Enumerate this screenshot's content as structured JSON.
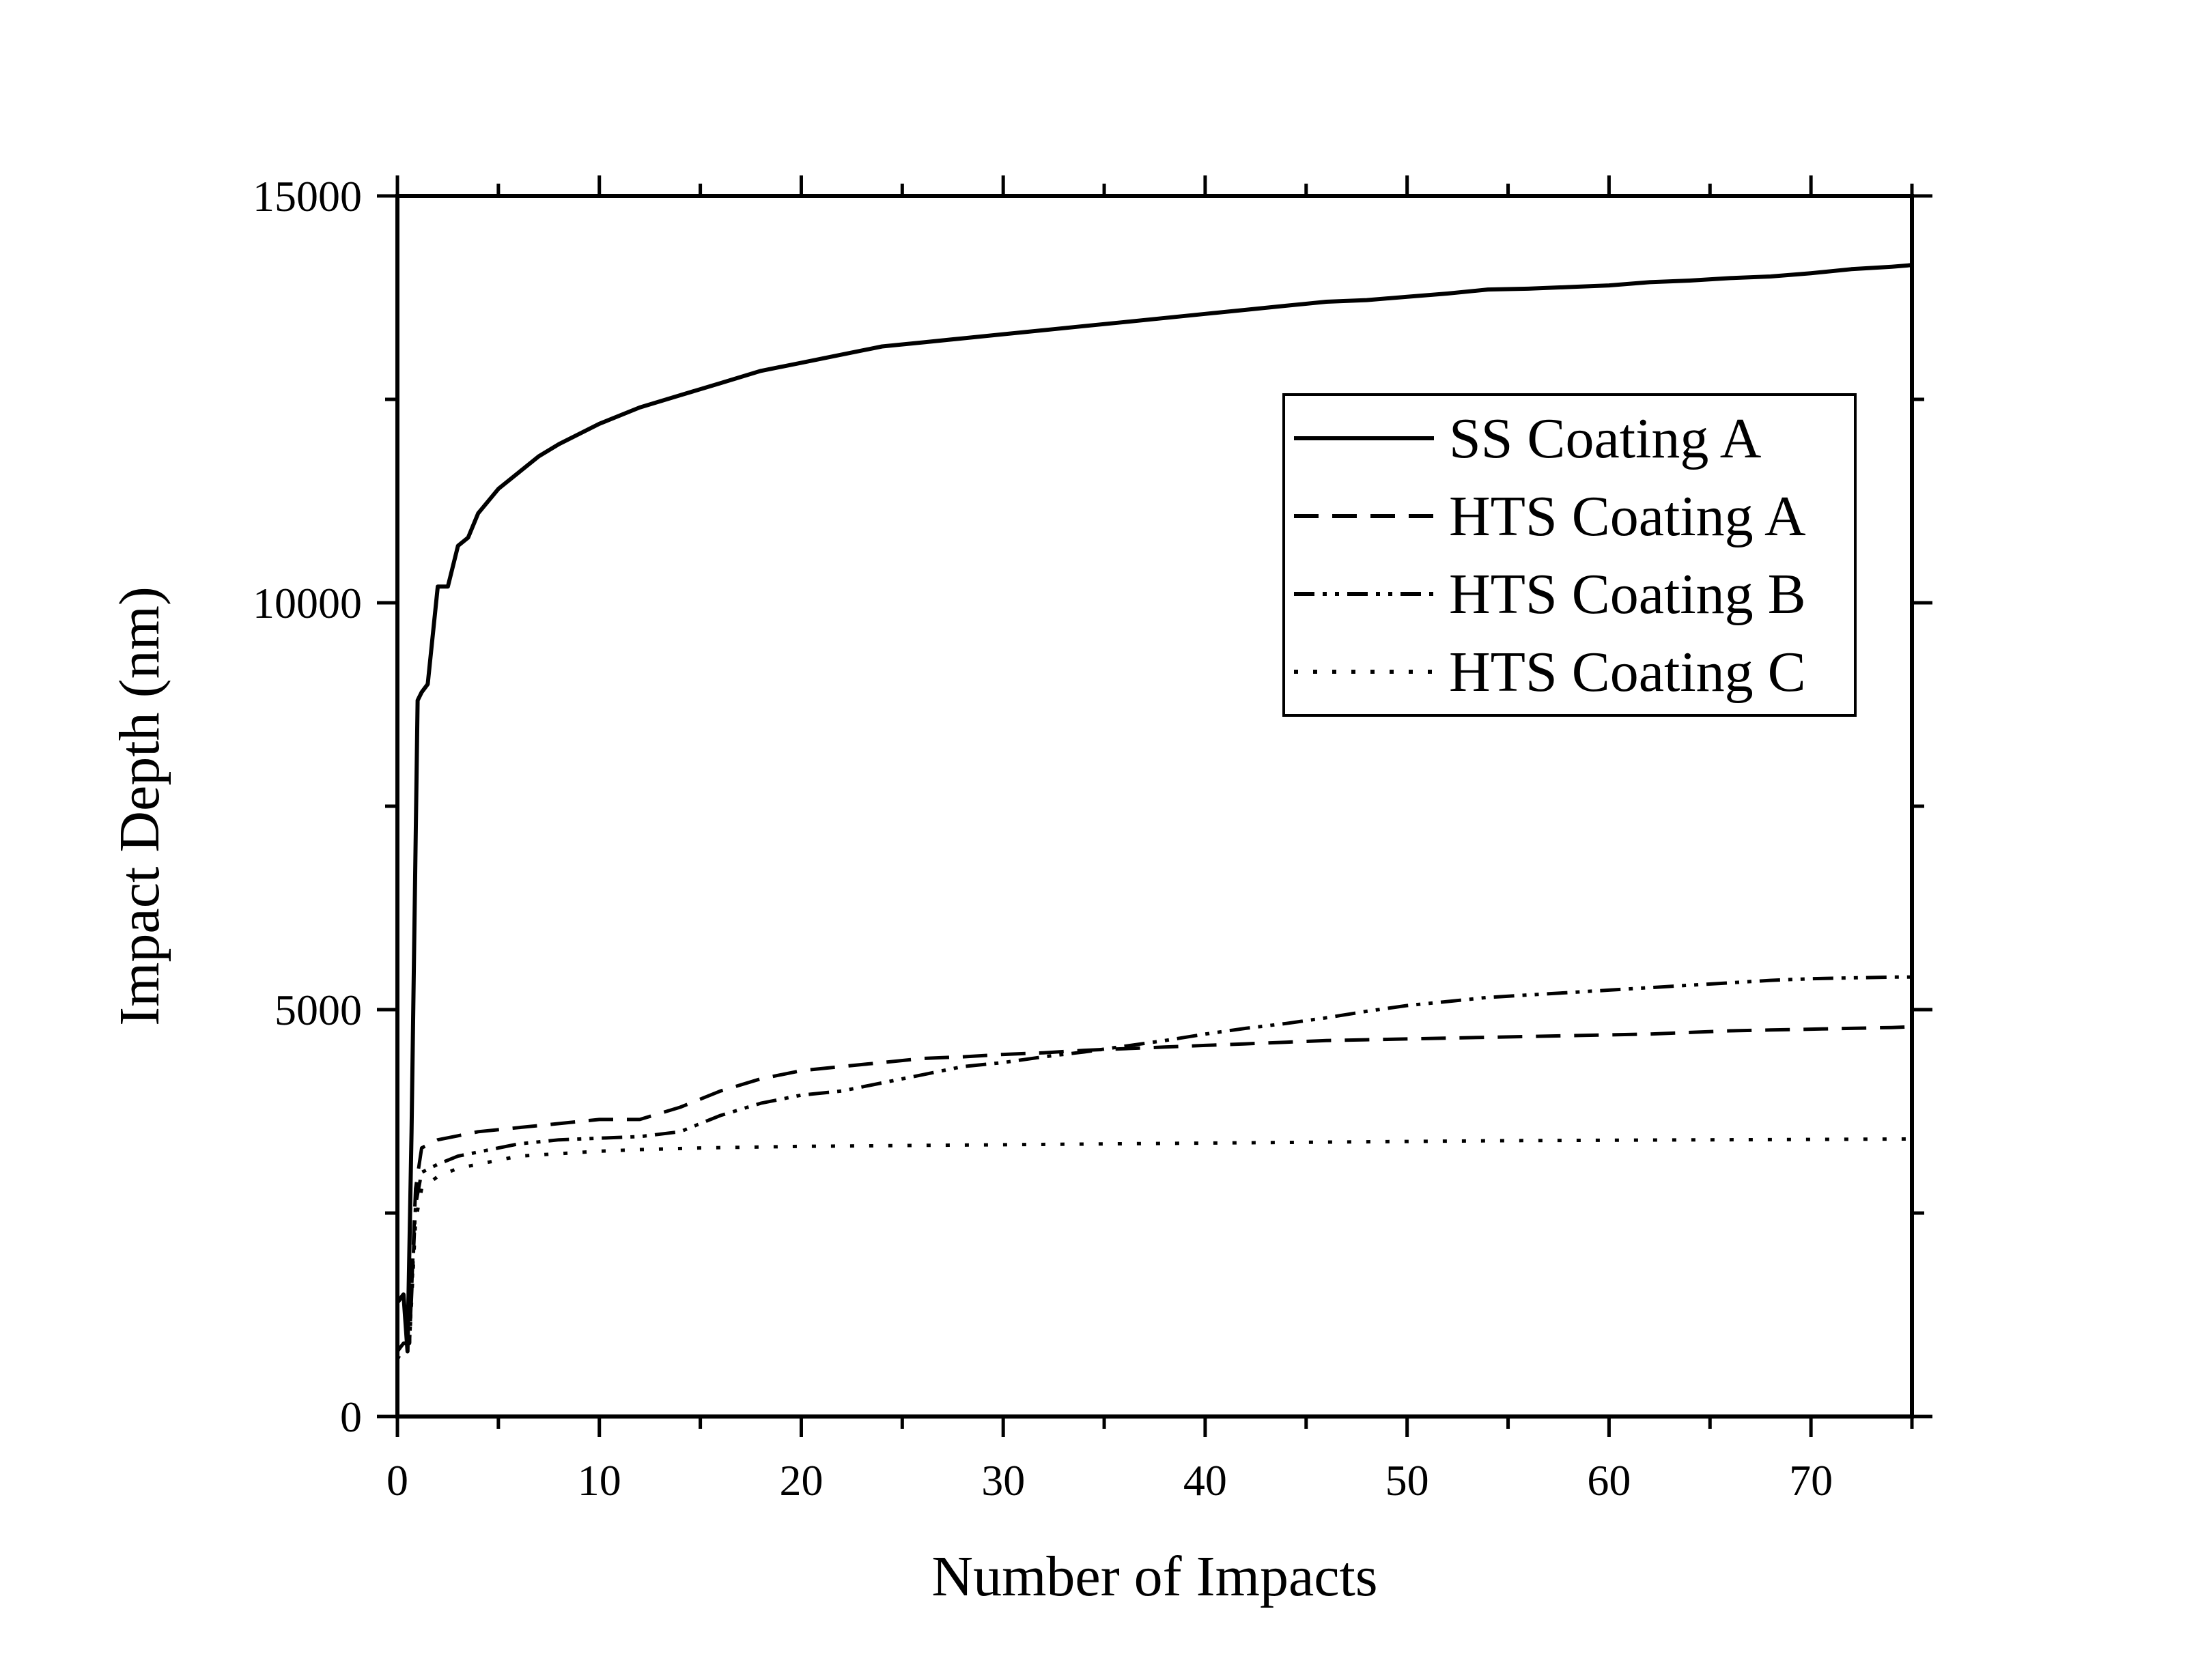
{
  "chart_data": {
    "type": "line",
    "title": "",
    "xlabel": "Number of Impacts",
    "ylabel": "Impact Depth (nm)",
    "xlim": [
      0,
      75
    ],
    "ylim": [
      0,
      15000
    ],
    "xticks": [
      0,
      10,
      20,
      30,
      40,
      50,
      60,
      70
    ],
    "yticks": [
      0,
      5000,
      10000,
      15000
    ],
    "xtick_labels": [
      "0",
      "10",
      "20",
      "30",
      "40",
      "50",
      "60",
      "70"
    ],
    "ytick_labels": [
      "0",
      "5000",
      "10000",
      "15000"
    ],
    "grid": false,
    "legend_position": "top-right",
    "series": [
      {
        "name": "SS Coating A",
        "line_style": "solid",
        "color": "#000000",
        "x": [
          0,
          0.3,
          0.5,
          0.7,
          1,
          1.2,
          1.5,
          2,
          2.5,
          3,
          3.5,
          4,
          5,
          6,
          7,
          8,
          10,
          12,
          14,
          16,
          18,
          20,
          22,
          24,
          26,
          28,
          30,
          32,
          34,
          36,
          38,
          40,
          42,
          44,
          46,
          48,
          50,
          52,
          54,
          56,
          58,
          60,
          62,
          64,
          66,
          68,
          70,
          72,
          74,
          75
        ],
        "y": [
          1400,
          1500,
          800,
          3500,
          8800,
          8900,
          9000,
          10200,
          10200,
          10700,
          10800,
          11100,
          11400,
          11600,
          11800,
          11950,
          12200,
          12400,
          12550,
          12700,
          12850,
          12950,
          13050,
          13150,
          13200,
          13250,
          13300,
          13350,
          13400,
          13450,
          13500,
          13550,
          13600,
          13650,
          13700,
          13720,
          13760,
          13800,
          13850,
          13860,
          13880,
          13900,
          13940,
          13960,
          13990,
          14010,
          14050,
          14100,
          14130,
          14150
        ]
      },
      {
        "name": "HTS Coating A",
        "line_style": "dashed",
        "color": "#000000",
        "x": [
          0,
          0.3,
          0.6,
          0.9,
          1.2,
          2,
          3,
          4,
          6,
          8,
          10,
          12,
          14,
          16,
          18,
          20,
          22,
          24,
          26,
          28,
          30,
          32,
          34,
          36,
          38,
          40,
          42,
          44,
          46,
          48,
          50,
          52,
          54,
          56,
          58,
          60,
          62,
          64,
          66,
          68,
          70,
          72,
          74,
          75
        ],
        "y": [
          800,
          900,
          900,
          2800,
          3300,
          3400,
          3450,
          3500,
          3550,
          3600,
          3650,
          3650,
          3800,
          4000,
          4150,
          4250,
          4300,
          4350,
          4400,
          4420,
          4450,
          4470,
          4500,
          4520,
          4540,
          4560,
          4580,
          4600,
          4620,
          4630,
          4640,
          4650,
          4660,
          4670,
          4680,
          4690,
          4700,
          4720,
          4740,
          4750,
          4760,
          4770,
          4780,
          4790
        ]
      },
      {
        "name": "HTS Coating B",
        "line_style": "dash-dot-dot",
        "color": "#000000",
        "x": [
          0,
          0.3,
          0.6,
          0.9,
          1.2,
          2,
          3,
          4,
          6,
          8,
          10,
          12,
          14,
          16,
          18,
          20,
          22,
          24,
          26,
          28,
          30,
          32,
          34,
          36,
          38,
          40,
          42,
          44,
          46,
          48,
          50,
          52,
          54,
          56,
          58,
          60,
          62,
          64,
          66,
          68,
          70,
          72,
          74,
          75
        ],
        "y": [
          800,
          900,
          900,
          2600,
          3000,
          3100,
          3200,
          3250,
          3350,
          3400,
          3420,
          3440,
          3500,
          3700,
          3850,
          3950,
          4000,
          4100,
          4200,
          4300,
          4350,
          4420,
          4480,
          4550,
          4620,
          4700,
          4770,
          4830,
          4900,
          4980,
          5050,
          5100,
          5150,
          5180,
          5210,
          5240,
          5270,
          5300,
          5330,
          5360,
          5380,
          5390,
          5400,
          5400
        ]
      },
      {
        "name": "HTS Coating C",
        "line_style": "dotted",
        "color": "#000000",
        "x": [
          0,
          0.3,
          0.6,
          0.9,
          1.2,
          2,
          3,
          4,
          6,
          8,
          10,
          12,
          15,
          20,
          25,
          30,
          35,
          40,
          45,
          50,
          55,
          60,
          65,
          70,
          75
        ],
        "y": [
          700,
          850,
          900,
          2400,
          2800,
          2950,
          3050,
          3100,
          3200,
          3230,
          3260,
          3280,
          3300,
          3320,
          3330,
          3340,
          3350,
          3360,
          3370,
          3380,
          3390,
          3395,
          3400,
          3405,
          3410
        ]
      }
    ]
  }
}
